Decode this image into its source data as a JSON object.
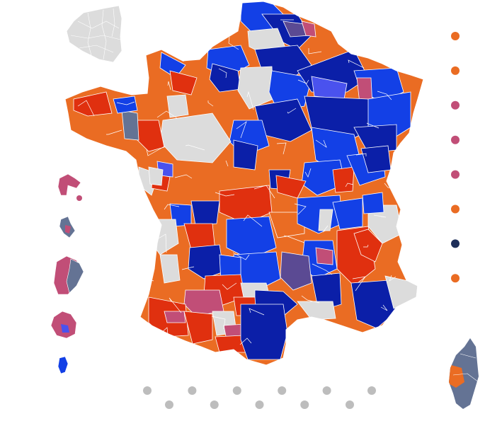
{
  "colors": {
    "no_data": "#dcdcdc",
    "orange": "#ea6c23",
    "red": "#e0300f",
    "blue": "#1340e6",
    "dark_blue": "#0b1fa8",
    "light_blue": "#4a52ee",
    "pink": "#c14e77",
    "slate": "#647394",
    "purple": "#5b4a93",
    "navy": "#1e2f5a",
    "border": "#ffffff",
    "pager": "#bdbdbd"
  },
  "legend": [
    {
      "color": "#ea6c23"
    },
    {
      "color": "#ea6c23"
    },
    {
      "color": "#c14e77"
    },
    {
      "color": "#c14e77"
    },
    {
      "color": "#c14e77"
    },
    {
      "color": "#ea6c23"
    },
    {
      "color": "#1e2f5a"
    },
    {
      "color": "#ea6c23"
    }
  ],
  "pager_count": 11
}
